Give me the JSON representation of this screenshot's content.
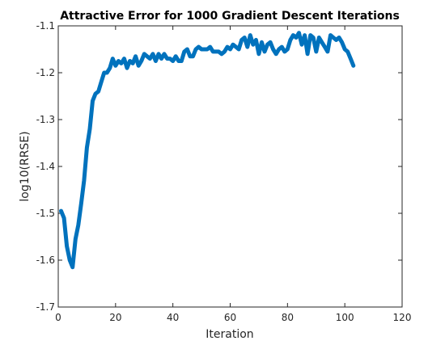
{
  "chart_data": {
    "type": "line",
    "title": "Attractive Error for 1000 Gradient Descent Iterations",
    "xlabel": "Iteration",
    "ylabel": "log10(RRSE)",
    "xlim": [
      0,
      120
    ],
    "ylim": [
      -1.7,
      -1.1
    ],
    "xticks": [
      "0",
      "20",
      "40",
      "60",
      "80",
      "100",
      "120"
    ],
    "yticks": [
      "-1.1",
      "-1.2",
      "-1.3",
      "-1.4",
      "-1.5",
      "-1.6",
      "-1.7"
    ],
    "grid": false,
    "line_color": "#0072bd",
    "series": [
      {
        "x": [
          1,
          2,
          3,
          4,
          5,
          6,
          7,
          8,
          9,
          10,
          11,
          12,
          13,
          14,
          15,
          16,
          17,
          18,
          19,
          20,
          21,
          22,
          23,
          24,
          25,
          26,
          27,
          28,
          29,
          30,
          31,
          32,
          33,
          34,
          35,
          36,
          37,
          38,
          39,
          40,
          41,
          42,
          43,
          44,
          45,
          46,
          47,
          48,
          49,
          50,
          51,
          52,
          53,
          54,
          55,
          56,
          57,
          58,
          59,
          60,
          61,
          62,
          63,
          64,
          65,
          66,
          67,
          68,
          69,
          70,
          71,
          72,
          73,
          74,
          75,
          76,
          77,
          78,
          79,
          80,
          81,
          82,
          83,
          84,
          85,
          86,
          87,
          88,
          89,
          90,
          91,
          92,
          93,
          94,
          95,
          96,
          97,
          98,
          99,
          100,
          101,
          102,
          103
        ],
        "values": [
          -1.495,
          -1.51,
          -1.57,
          -1.6,
          -1.615,
          -1.555,
          -1.525,
          -1.48,
          -1.43,
          -1.36,
          -1.32,
          -1.26,
          -1.245,
          -1.24,
          -1.22,
          -1.2,
          -1.2,
          -1.19,
          -1.17,
          -1.185,
          -1.175,
          -1.18,
          -1.17,
          -1.19,
          -1.175,
          -1.18,
          -1.165,
          -1.185,
          -1.175,
          -1.16,
          -1.165,
          -1.17,
          -1.16,
          -1.175,
          -1.16,
          -1.17,
          -1.16,
          -1.17,
          -1.17,
          -1.175,
          -1.165,
          -1.175,
          -1.175,
          -1.155,
          -1.15,
          -1.165,
          -1.165,
          -1.15,
          -1.145,
          -1.15,
          -1.15,
          -1.15,
          -1.145,
          -1.155,
          -1.155,
          -1.155,
          -1.16,
          -1.155,
          -1.145,
          -1.15,
          -1.14,
          -1.145,
          -1.15,
          -1.13,
          -1.125,
          -1.145,
          -1.12,
          -1.14,
          -1.13,
          -1.16,
          -1.135,
          -1.155,
          -1.14,
          -1.135,
          -1.15,
          -1.16,
          -1.15,
          -1.145,
          -1.155,
          -1.15,
          -1.13,
          -1.12,
          -1.125,
          -1.115,
          -1.14,
          -1.12,
          -1.16,
          -1.12,
          -1.125,
          -1.155,
          -1.125,
          -1.135,
          -1.145,
          -1.155,
          -1.12,
          -1.125,
          -1.13,
          -1.125,
          -1.135,
          -1.15,
          -1.155,
          -1.17,
          -1.185
        ]
      }
    ]
  }
}
